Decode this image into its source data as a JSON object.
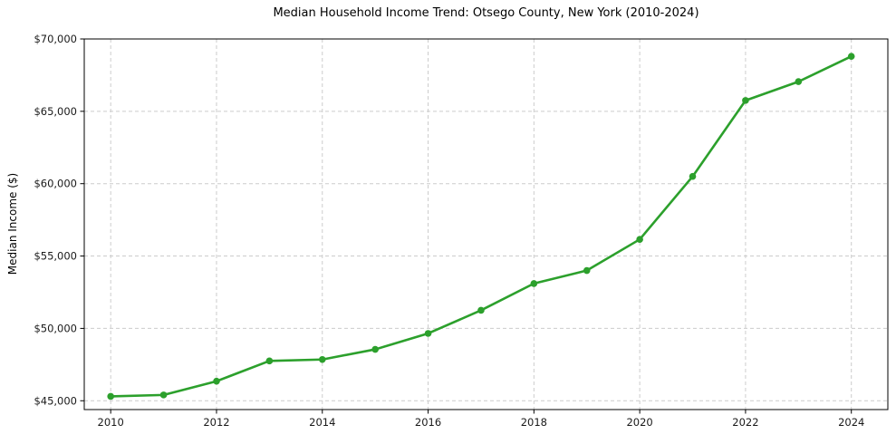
{
  "chart_data": {
    "type": "line",
    "title": "Median Household Income Trend: Otsego County, New York (2010-2024)",
    "xlabel": "",
    "ylabel": "Median Income ($)",
    "x": [
      2010,
      2011,
      2012,
      2013,
      2014,
      2015,
      2016,
      2017,
      2018,
      2019,
      2020,
      2021,
      2022,
      2023,
      2024
    ],
    "series": [
      {
        "values": [
          45300,
          45400,
          46350,
          47750,
          47850,
          48550,
          49650,
          51250,
          53100,
          54000,
          56150,
          60500,
          65750,
          67050,
          68800
        ],
        "color": "#2ca02c",
        "marker": "circle"
      }
    ],
    "x_ticks": [
      {
        "value": 2010,
        "label": "2010"
      },
      {
        "value": 2012,
        "label": "2012"
      },
      {
        "value": 2014,
        "label": "2014"
      },
      {
        "value": 2016,
        "label": "2016"
      },
      {
        "value": 2018,
        "label": "2018"
      },
      {
        "value": 2020,
        "label": "2020"
      },
      {
        "value": 2022,
        "label": "2022"
      },
      {
        "value": 2024,
        "label": "2024"
      }
    ],
    "y_ticks": [
      {
        "value": 45000,
        "label": "$45,000"
      },
      {
        "value": 50000,
        "label": "$50,000"
      },
      {
        "value": 55000,
        "label": "$55,000"
      },
      {
        "value": 60000,
        "label": "$60,000"
      },
      {
        "value": 65000,
        "label": "$65,000"
      },
      {
        "value": 70000,
        "label": "$70,000"
      }
    ],
    "xlim": [
      2009.5,
      2024.69
    ],
    "ylim": [
      44390,
      70000
    ],
    "grid": "dashed",
    "grid_color": "#cccccc",
    "spine_color": "#000000",
    "background_color": "#ffffff",
    "legend": "none"
  }
}
